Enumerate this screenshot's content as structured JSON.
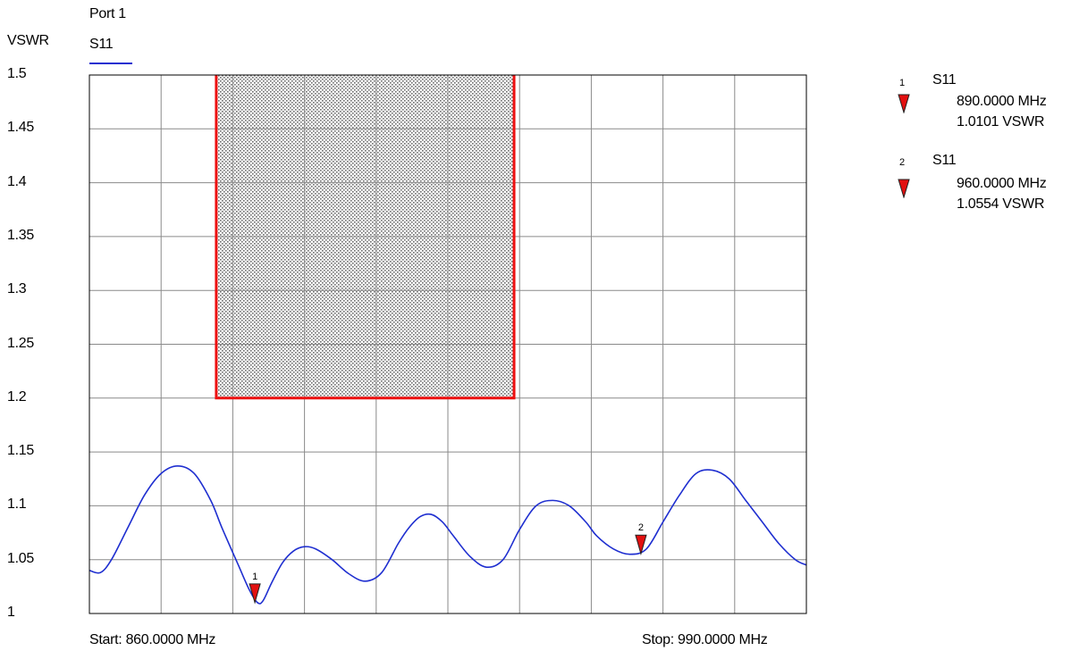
{
  "header": {
    "port_label": "Port 1",
    "y_unit_label": "VSWR",
    "trace_label": "S11"
  },
  "footer": {
    "start_label": "Start: 860.0000 MHz",
    "stop_label": "Stop: 990.0000 MHz"
  },
  "markers": [
    {
      "number": "1",
      "trace": "S11",
      "freq": "890.0000 MHz",
      "value": "1.0101 VSWR"
    },
    {
      "number": "2",
      "trace": "S11",
      "freq": "960.0000 MHz",
      "value": "1.0554 VSWR"
    }
  ],
  "colors": {
    "trace": "#1f2fd0",
    "limit": "#ee1111",
    "marker": "#e21010",
    "grid": "#8a8a8a"
  },
  "chart_data": {
    "type": "line",
    "xlim": [
      860,
      990
    ],
    "ylim": [
      1.0,
      1.5
    ],
    "yticks": [
      "1.5",
      "1.45",
      "1.4",
      "1.35",
      "1.3",
      "1.25",
      "1.2",
      "1.15",
      "1.1",
      "1.05",
      "1"
    ],
    "x_divisions": 10,
    "grid": true,
    "series": [
      {
        "name": "S11",
        "x": [
          860,
          862,
          864,
          867,
          870,
          873,
          876,
          879,
          882,
          884,
          887,
          889,
          890.5,
          891.5,
          893,
          895,
          897,
          899,
          901,
          904,
          907,
          910,
          913,
          916,
          918,
          920,
          922,
          924,
          926,
          929,
          932,
          935,
          938,
          941,
          944,
          947,
          950,
          952,
          955,
          958,
          961,
          964,
          967,
          970,
          973,
          976,
          979,
          982,
          985,
          988,
          990
        ],
        "y": [
          1.04,
          1.038,
          1.05,
          1.08,
          1.11,
          1.13,
          1.137,
          1.13,
          1.105,
          1.08,
          1.045,
          1.022,
          1.01,
          1.012,
          1.028,
          1.047,
          1.058,
          1.062,
          1.06,
          1.05,
          1.037,
          1.03,
          1.038,
          1.065,
          1.08,
          1.09,
          1.092,
          1.085,
          1.072,
          1.053,
          1.043,
          1.05,
          1.078,
          1.1,
          1.105,
          1.1,
          1.085,
          1.072,
          1.06,
          1.055,
          1.06,
          1.085,
          1.11,
          1.13,
          1.133,
          1.125,
          1.105,
          1.085,
          1.065,
          1.05,
          1.045
        ]
      }
    ],
    "limit_region": {
      "x": [
        883,
        937
      ],
      "y": [
        1.2,
        1.5
      ]
    },
    "marker_points": [
      {
        "number": "1",
        "x": 890,
        "y": 1.0101
      },
      {
        "number": "2",
        "x": 960,
        "y": 1.0554
      }
    ]
  }
}
